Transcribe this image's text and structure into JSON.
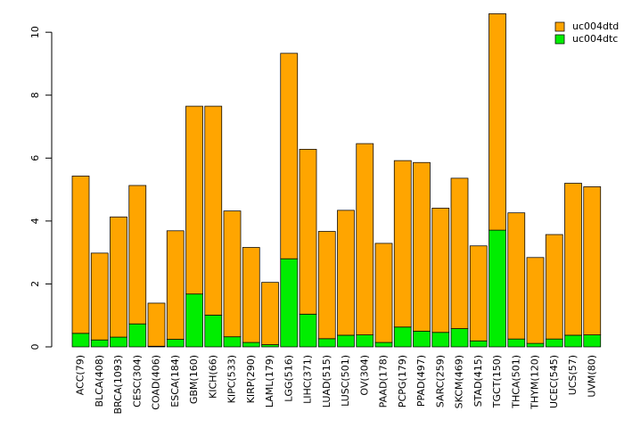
{
  "colors": {
    "stack_top": "#FFA500",
    "stack_bottom": "#00EE00",
    "bar_border": "#000000",
    "axis": "#000000",
    "background": "#FFFFFF"
  },
  "chart_data": {
    "type": "bar",
    "stacked": true,
    "title": "",
    "xlabel": "",
    "ylabel": "",
    "ylim": [
      0,
      10.6
    ],
    "yticks": [
      0,
      2,
      4,
      6,
      8,
      10
    ],
    "legend_position": "top-right",
    "categories": [
      "ACC(79)",
      "BLCA(408)",
      "BRCA(1093)",
      "CESC(304)",
      "COAD(406)",
      "ESCA(184)",
      "GBM(160)",
      "KICH(66)",
      "KIPC(533)",
      "KIRP(290)",
      "LAML(179)",
      "LGG(516)",
      "LIHC(371)",
      "LUAD(515)",
      "LUSC(501)",
      "OV(304)",
      "PAAD(178)",
      "PCPG(179)",
      "PPAD(497)",
      "SARC(259)",
      "SKCM(469)",
      "STAD(415)",
      "TGCT(150)",
      "THCA(501)",
      "THYM(120)",
      "UCEC(545)",
      "UCS(57)",
      "UVM(80)"
    ],
    "series": [
      {
        "name": "uc004dtc",
        "role": "bottom",
        "values": [
          0.43,
          0.22,
          0.31,
          0.73,
          0.02,
          0.24,
          1.68,
          1.01,
          0.32,
          0.14,
          0.07,
          2.8,
          1.04,
          0.26,
          0.37,
          0.38,
          0.14,
          0.63,
          0.5,
          0.46,
          0.58,
          0.19,
          3.71,
          0.25,
          0.11,
          0.25,
          0.37,
          0.38
        ]
      },
      {
        "name": "uc004dtd",
        "role": "top",
        "values": [
          5.0,
          2.76,
          3.82,
          4.4,
          1.37,
          3.45,
          5.97,
          6.64,
          4.0,
          3.02,
          1.98,
          6.53,
          5.24,
          3.41,
          3.97,
          6.08,
          3.15,
          5.29,
          5.36,
          3.95,
          4.78,
          3.02,
          6.88,
          4.01,
          2.73,
          3.32,
          4.83,
          4.71
        ]
      }
    ],
    "legend": [
      {
        "label": "uc004dtd",
        "series": "uc004dtd"
      },
      {
        "label": "uc004dtc",
        "series": "uc004dtc"
      }
    ]
  }
}
